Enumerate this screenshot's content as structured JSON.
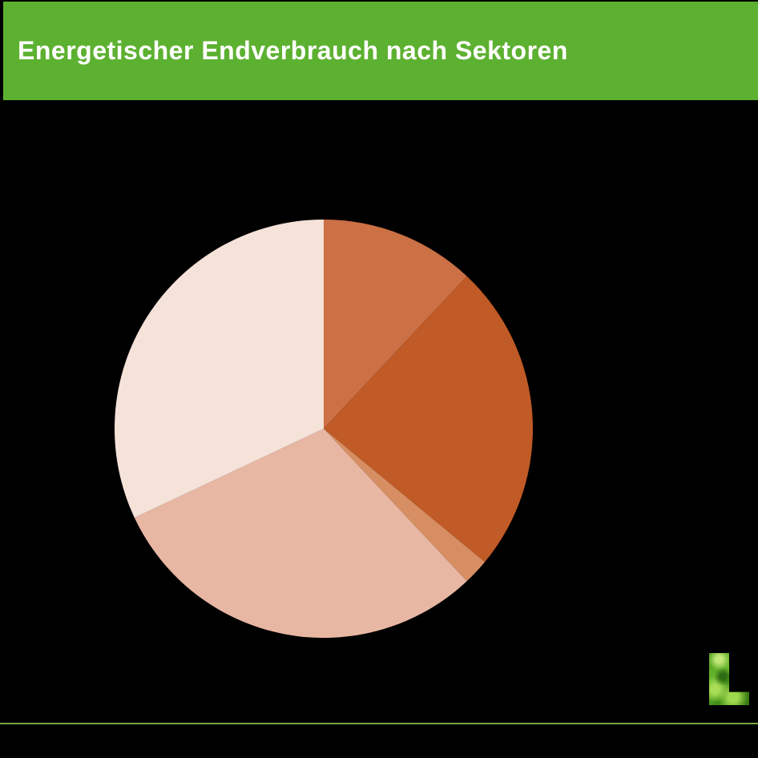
{
  "page": {
    "background": "#000000"
  },
  "header": {
    "title": "Energetischer Endverbrauch nach Sektoren",
    "background": "#5db131",
    "text_color": "#ffffff"
  },
  "chart_data": {
    "type": "pie",
    "title": "Energetischer Endverbrauch nach Sektoren",
    "legend": "none",
    "data_labels": "none",
    "start_angle_deg": 0,
    "direction": "clockwise",
    "center": {
      "x": 404,
      "y": 535
    },
    "radius": 261,
    "series": [
      {
        "value": 12,
        "color": "#cc7045"
      },
      {
        "value": 24,
        "color": "#c05a26"
      },
      {
        "value": 2,
        "color": "#d78e62"
      },
      {
        "value": 30,
        "color": "#e8b7a3"
      },
      {
        "value": 32,
        "color": "#f5e2d9"
      }
    ]
  },
  "footer": {
    "rule_color": "#7aa83e",
    "logo_letter": "L"
  }
}
